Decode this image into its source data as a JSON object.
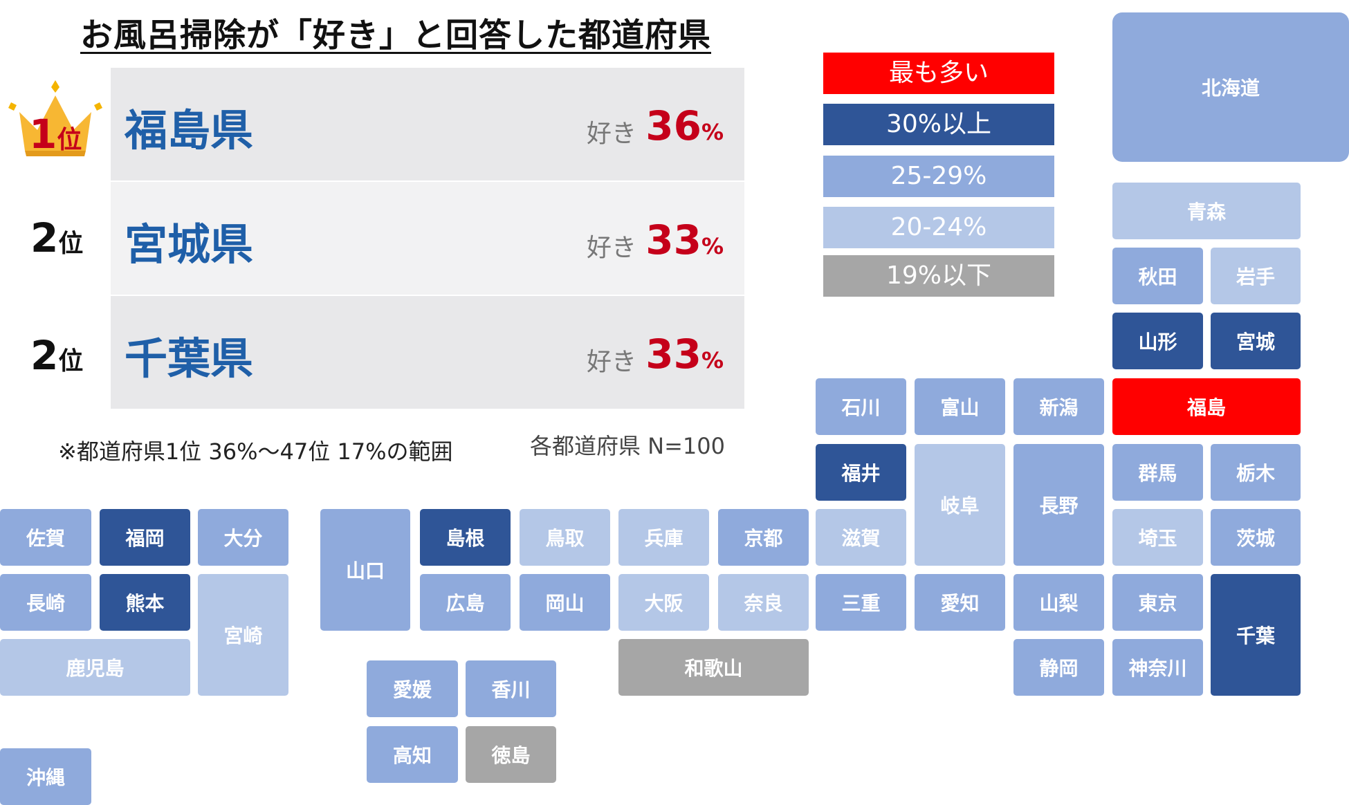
{
  "title": "お風呂掃除が「好き」と回答した都道府県",
  "colors": {
    "max": "#ff0000",
    "over30": "#2f5597",
    "r25_29": "#8faadc",
    "r20_24": "#b4c7e7",
    "under19": "#a6a6a6",
    "rank_bg_light": "#e8e8ea",
    "rank_bg_lighter": "#f2f2f3",
    "pref_text": "#1f5fa8",
    "pct_text": "#c5001a"
  },
  "ranking": [
    {
      "rank": "1",
      "unit": "位",
      "prefecture": "福島県",
      "like_label": "好き",
      "percent": "36",
      "percent_sign": "%"
    },
    {
      "rank": "2",
      "unit": "位",
      "prefecture": "宮城県",
      "like_label": "好き",
      "percent": "33",
      "percent_sign": "%"
    },
    {
      "rank": "2",
      "unit": "位",
      "prefecture": "千葉県",
      "like_label": "好き",
      "percent": "33",
      "percent_sign": "%"
    }
  ],
  "notes": {
    "range": "※都道府県1位 36%～47位 17%の範囲",
    "sample": "各都道府県 N=100"
  },
  "legend": [
    {
      "label": "最も多い",
      "color": "max"
    },
    {
      "label": "30%以上",
      "color": "over30"
    },
    {
      "label": "25-29%",
      "color": "r25_29"
    },
    {
      "label": "20-24%",
      "color": "r20_24"
    },
    {
      "label": "19%以下",
      "color": "under19"
    }
  ],
  "prefectures": {
    "hokkaido": {
      "name": "北海道",
      "category": "25-29%"
    },
    "aomori": {
      "name": "青森",
      "category": "20-24%"
    },
    "akita": {
      "name": "秋田",
      "category": "25-29%"
    },
    "iwate": {
      "name": "岩手",
      "category": "20-24%"
    },
    "yamagata": {
      "name": "山形",
      "category": "30%以上"
    },
    "miyagi": {
      "name": "宮城",
      "category": "30%以上"
    },
    "ishikawa": {
      "name": "石川",
      "category": "25-29%"
    },
    "toyama": {
      "name": "富山",
      "category": "25-29%"
    },
    "niigata": {
      "name": "新潟",
      "category": "25-29%"
    },
    "fukushima": {
      "name": "福島",
      "category": "最も多い"
    },
    "fukui": {
      "name": "福井",
      "category": "30%以上"
    },
    "gifu": {
      "name": "岐阜",
      "category": "20-24%"
    },
    "nagano": {
      "name": "長野",
      "category": "25-29%"
    },
    "gunma": {
      "name": "群馬",
      "category": "25-29%"
    },
    "tochigi": {
      "name": "栃木",
      "category": "25-29%"
    },
    "saga": {
      "name": "佐賀",
      "category": "25-29%"
    },
    "fukuoka": {
      "name": "福岡",
      "category": "30%以上"
    },
    "oita": {
      "name": "大分",
      "category": "25-29%"
    },
    "yamaguchi": {
      "name": "山口",
      "category": "25-29%"
    },
    "shimane": {
      "name": "島根",
      "category": "30%以上"
    },
    "tottori": {
      "name": "鳥取",
      "category": "20-24%"
    },
    "hyogo": {
      "name": "兵庫",
      "category": "20-24%"
    },
    "kyoto": {
      "name": "京都",
      "category": "25-29%"
    },
    "shiga": {
      "name": "滋賀",
      "category": "20-24%"
    },
    "saitama": {
      "name": "埼玉",
      "category": "20-24%"
    },
    "ibaraki": {
      "name": "茨城",
      "category": "25-29%"
    },
    "nagasaki": {
      "name": "長崎",
      "category": "25-29%"
    },
    "kumamoto": {
      "name": "熊本",
      "category": "30%以上"
    },
    "miyazaki": {
      "name": "宮崎",
      "category": "20-24%"
    },
    "hiroshima": {
      "name": "広島",
      "category": "25-29%"
    },
    "okayama": {
      "name": "岡山",
      "category": "25-29%"
    },
    "osaka": {
      "name": "大阪",
      "category": "20-24%"
    },
    "nara": {
      "name": "奈良",
      "category": "20-24%"
    },
    "mie": {
      "name": "三重",
      "category": "25-29%"
    },
    "aichi": {
      "name": "愛知",
      "category": "25-29%"
    },
    "yamanashi": {
      "name": "山梨",
      "category": "25-29%"
    },
    "tokyo": {
      "name": "東京",
      "category": "25-29%"
    },
    "chiba": {
      "name": "千葉",
      "category": "30%以上"
    },
    "kagoshima": {
      "name": "鹿児島",
      "category": "20-24%"
    },
    "wakayama": {
      "name": "和歌山",
      "category": "19%以下"
    },
    "shizuoka": {
      "name": "静岡",
      "category": "25-29%"
    },
    "kanagawa": {
      "name": "神奈川",
      "category": "25-29%"
    },
    "ehime": {
      "name": "愛媛",
      "category": "25-29%"
    },
    "kagawa": {
      "name": "香川",
      "category": "25-29%"
    },
    "kochi": {
      "name": "高知",
      "category": "25-29%"
    },
    "tokushima": {
      "name": "徳島",
      "category": "19%以下"
    },
    "okinawa": {
      "name": "沖縄",
      "category": "25-29%"
    }
  }
}
